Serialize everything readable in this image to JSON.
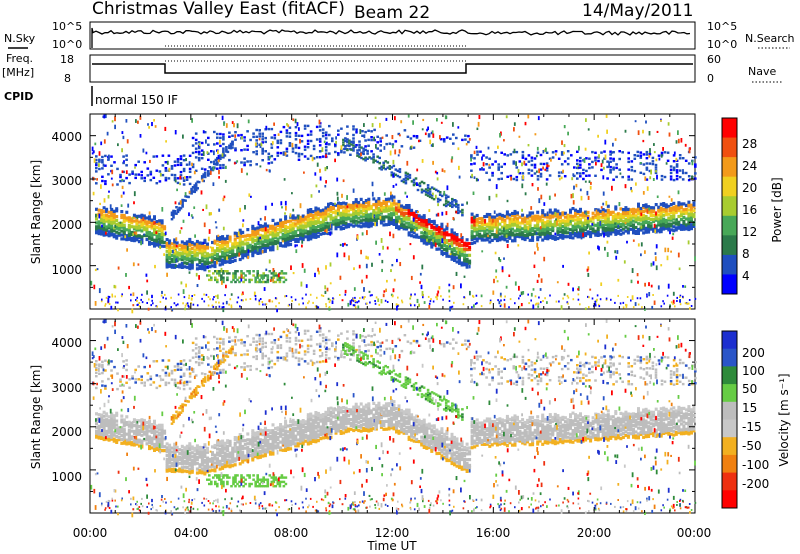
{
  "header": {
    "title": "Christmas Valley East (fitACF)",
    "beam": "Beam 22",
    "date": "14/May/2011"
  },
  "top_panels": {
    "nsky_label": "N.Sky",
    "nsky_ticks": [
      "10^5",
      "10^0"
    ],
    "nsearch_label": "N.Search",
    "nsearch_ticks": [
      "10^5",
      "10^0"
    ],
    "freq_label": "Freq.",
    "freq_unit": "[MHz]",
    "freq_ticks": [
      "18",
      "8"
    ],
    "nave_label": "Nave",
    "nave_ticks": [
      "60",
      "0"
    ],
    "cpid_label": "CPID",
    "cpid_value": "normal 150 IF"
  },
  "colors": {
    "power_scale": [
      "#0000ff",
      "#1f4fbf",
      "#2b7a4a",
      "#48a858",
      "#a8cc30",
      "#f0d020",
      "#f39a1a",
      "#f05010",
      "#ff0000"
    ],
    "velocity_scale": [
      "#1c2fcf",
      "#2a55c8",
      "#2e8a3a",
      "#66cc44",
      "#bdbdbd",
      "#c8c8c8",
      "#f2b020",
      "#f08010",
      "#ee3010",
      "#ff0000"
    ]
  },
  "chart_data": [
    {
      "type": "heatmap",
      "title": "Power",
      "ylabel": "Slant Range [km]",
      "ylim": [
        0,
        4500
      ],
      "yticks": [
        "4000",
        "3000",
        "2000",
        "1000"
      ],
      "colorbar_label": "Power [dB]",
      "colorbar_ticks": [
        "28",
        "24",
        "20",
        "16",
        "12",
        "8",
        "4"
      ]
    },
    {
      "type": "heatmap",
      "title": "Velocity",
      "ylabel": "Slant Range [km]",
      "ylim": [
        0,
        4500
      ],
      "yticks": [
        "4000",
        "3000",
        "2000",
        "1000"
      ],
      "colorbar_label": "Velocity [m s⁻¹]",
      "colorbar_ticks": [
        "200",
        "100",
        "50",
        "15",
        "-15",
        "-50",
        "-100",
        "-200"
      ]
    }
  ],
  "x_axis": {
    "label": "Time UT",
    "xlim_hours": [
      0,
      24
    ],
    "ticks": [
      "00:00",
      "04:00",
      "08:00",
      "12:00",
      "16:00",
      "20:00",
      "00:00"
    ]
  }
}
